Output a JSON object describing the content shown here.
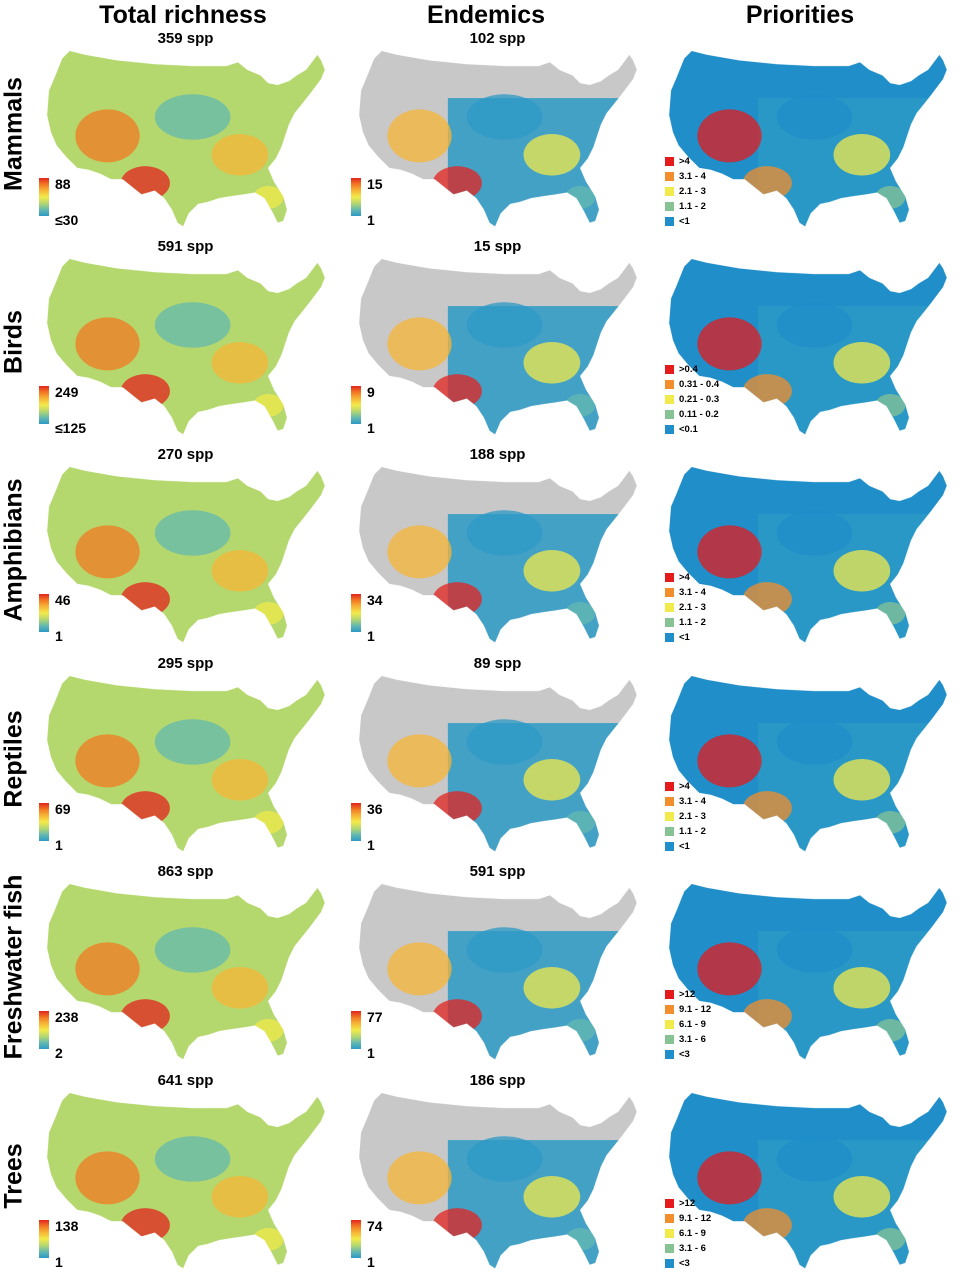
{
  "columns": [
    {
      "id": "total",
      "title": "Total richness"
    },
    {
      "id": "endemics",
      "title": "Endemics"
    },
    {
      "id": "priorities",
      "title": "Priorities"
    }
  ],
  "colors": {
    "ramp": [
      "#2c9ac6",
      "#63b9b0",
      "#b5d86e",
      "#f2ea4a",
      "#f7b637",
      "#f27a22",
      "#e3231e"
    ],
    "priority_classes": [
      "#e41a1c",
      "#f28e2b",
      "#f2e94a",
      "#86c293",
      "#1f8ec9"
    ],
    "outside": "#c8c8c8",
    "background_blue": "#1f8ec9"
  },
  "rows": [
    {
      "name": "Mammals",
      "total": {
        "spp": "359 spp",
        "max": "88",
        "min": "≤30"
      },
      "endemics": {
        "spp": "102 spp",
        "max": "15",
        "min": "1"
      },
      "priorities": {
        "classes": [
          ">4",
          "3.1 - 4",
          "2.1 - 3",
          "1.1 - 2",
          "<1"
        ]
      }
    },
    {
      "name": "Birds",
      "total": {
        "spp": "591 spp",
        "max": "249",
        "min": "≤125"
      },
      "endemics": {
        "spp": "15 spp",
        "max": "9",
        "min": "1"
      },
      "priorities": {
        "classes": [
          ">0.4",
          "0.31 - 0.4",
          "0.21 - 0.3",
          "0.11 - 0.2",
          "<0.1"
        ]
      }
    },
    {
      "name": "Amphibians",
      "total": {
        "spp": "270 spp",
        "max": "46",
        "min": "1"
      },
      "endemics": {
        "spp": "188 spp",
        "max": "34",
        "min": "1"
      },
      "priorities": {
        "classes": [
          ">4",
          "3.1 - 4",
          "2.1 - 3",
          "1.1 - 2",
          "<1"
        ]
      }
    },
    {
      "name": "Reptiles",
      "total": {
        "spp": "295 spp",
        "max": "69",
        "min": "1"
      },
      "endemics": {
        "spp": "89 spp",
        "max": "36",
        "min": "1"
      },
      "priorities": {
        "classes": [
          ">4",
          "3.1 - 4",
          "2.1 - 3",
          "1.1 - 2",
          "<1"
        ]
      }
    },
    {
      "name": "Freshwater fish",
      "total": {
        "spp": "863 spp",
        "max": "238",
        "min": "2"
      },
      "endemics": {
        "spp": "591 spp",
        "max": "77",
        "min": "1"
      },
      "priorities": {
        "classes": [
          ">12",
          "9.1 - 12",
          "6.1 - 9",
          "3.1 - 6",
          "<3"
        ]
      }
    },
    {
      "name": "Trees",
      "total": {
        "spp": "641 spp",
        "max": "138",
        "min": "1"
      },
      "endemics": {
        "spp": "186 spp",
        "max": "74",
        "min": "1"
      },
      "priorities": {
        "classes": [
          ">12",
          "9.1 - 12",
          "6.1 - 9",
          "3.1 - 6",
          "<3"
        ]
      }
    }
  ]
}
